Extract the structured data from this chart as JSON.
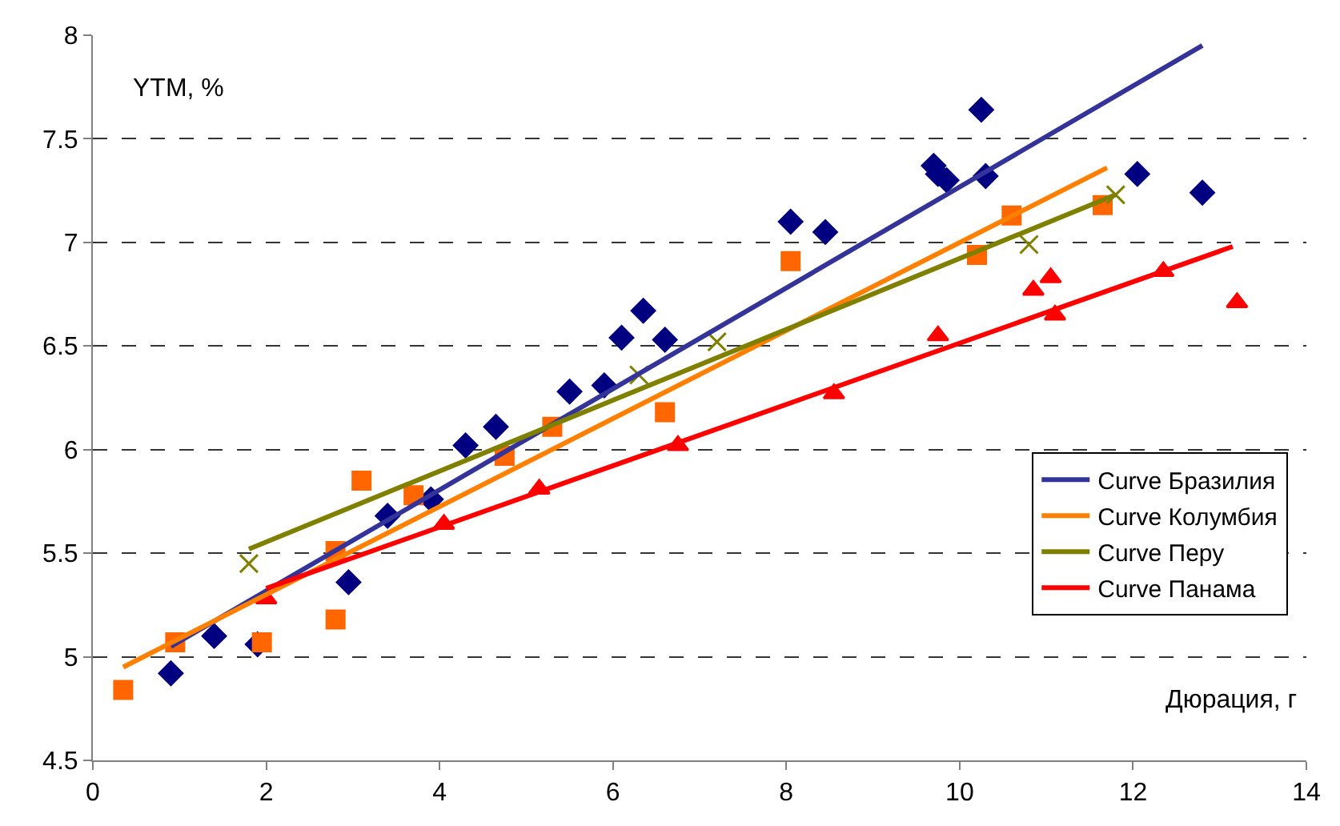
{
  "chart_data": {
    "type": "scatter",
    "xlabel": "Дюрация, г",
    "ylabel": "YTM, %",
    "xlim": [
      0,
      14
    ],
    "xticks": [
      0,
      2,
      4,
      6,
      8,
      10,
      12,
      14
    ],
    "ylim": [
      4.5,
      8
    ],
    "yticks": [
      4.5,
      5,
      5.5,
      6,
      6.5,
      7,
      7.5,
      8
    ],
    "grid": "y",
    "legend": "bottom right",
    "series": [
      {
        "marker": "diamond",
        "color": "#000080",
        "x": [
          0.9,
          1.4,
          1.9,
          2.95,
          3.4,
          3.9,
          4.3,
          4.65,
          5.5,
          5.9,
          6.1,
          6.35,
          6.6,
          8.05,
          8.45,
          9.7,
          9.75,
          9.85,
          10.25,
          10.3,
          12.05,
          12.8
        ],
        "values": [
          4.92,
          5.1,
          5.06,
          5.36,
          5.68,
          5.76,
          6.02,
          6.11,
          6.28,
          6.31,
          6.54,
          6.67,
          6.53,
          7.1,
          7.05,
          7.37,
          7.33,
          7.3,
          7.64,
          7.32,
          7.33,
          7.24
        ]
      },
      {
        "marker": "square",
        "color": "#ff6600",
        "x": [
          0.35,
          0.95,
          1.95,
          2.8,
          2.8,
          3.1,
          3.7,
          4.75,
          5.3,
          6.6,
          8.05,
          10.2,
          10.6,
          11.65
        ],
        "values": [
          4.84,
          5.07,
          5.07,
          5.18,
          5.51,
          5.85,
          5.78,
          5.97,
          6.11,
          6.18,
          6.91,
          6.94,
          7.13,
          7.18
        ]
      },
      {
        "marker": "cross",
        "color": "#808000",
        "x": [
          1.8,
          6.3,
          7.2,
          10.8,
          11.8
        ],
        "values": [
          5.45,
          6.36,
          6.52,
          6.99,
          7.23
        ]
      },
      {
        "marker": "triangle",
        "color": "#ff0000",
        "x": [
          2.0,
          4.05,
          5.15,
          6.75,
          8.55,
          9.75,
          10.85,
          11.05,
          11.1,
          12.35,
          13.2
        ],
        "values": [
          5.28,
          5.64,
          5.81,
          6.02,
          6.27,
          6.55,
          6.77,
          6.83,
          6.65,
          6.86,
          6.71
        ]
      },
      {
        "type": "line",
        "name": "Curve Бразилия",
        "color": "#333399",
        "x": [
          0.9,
          12.8
        ],
        "values": [
          5.05,
          7.95
        ]
      },
      {
        "type": "line",
        "name": "Curve Колумбия",
        "color": "#ff8000",
        "x": [
          0.35,
          11.7
        ],
        "values": [
          4.95,
          7.36
        ]
      },
      {
        "type": "line",
        "name": "Curve Перу",
        "color": "#808000",
        "x": [
          1.8,
          11.8
        ],
        "values": [
          5.52,
          7.23
        ]
      },
      {
        "type": "line",
        "name": "Curve Панама",
        "color": "#ff0000",
        "x": [
          2.0,
          13.15
        ],
        "values": [
          5.33,
          6.98
        ]
      }
    ]
  }
}
